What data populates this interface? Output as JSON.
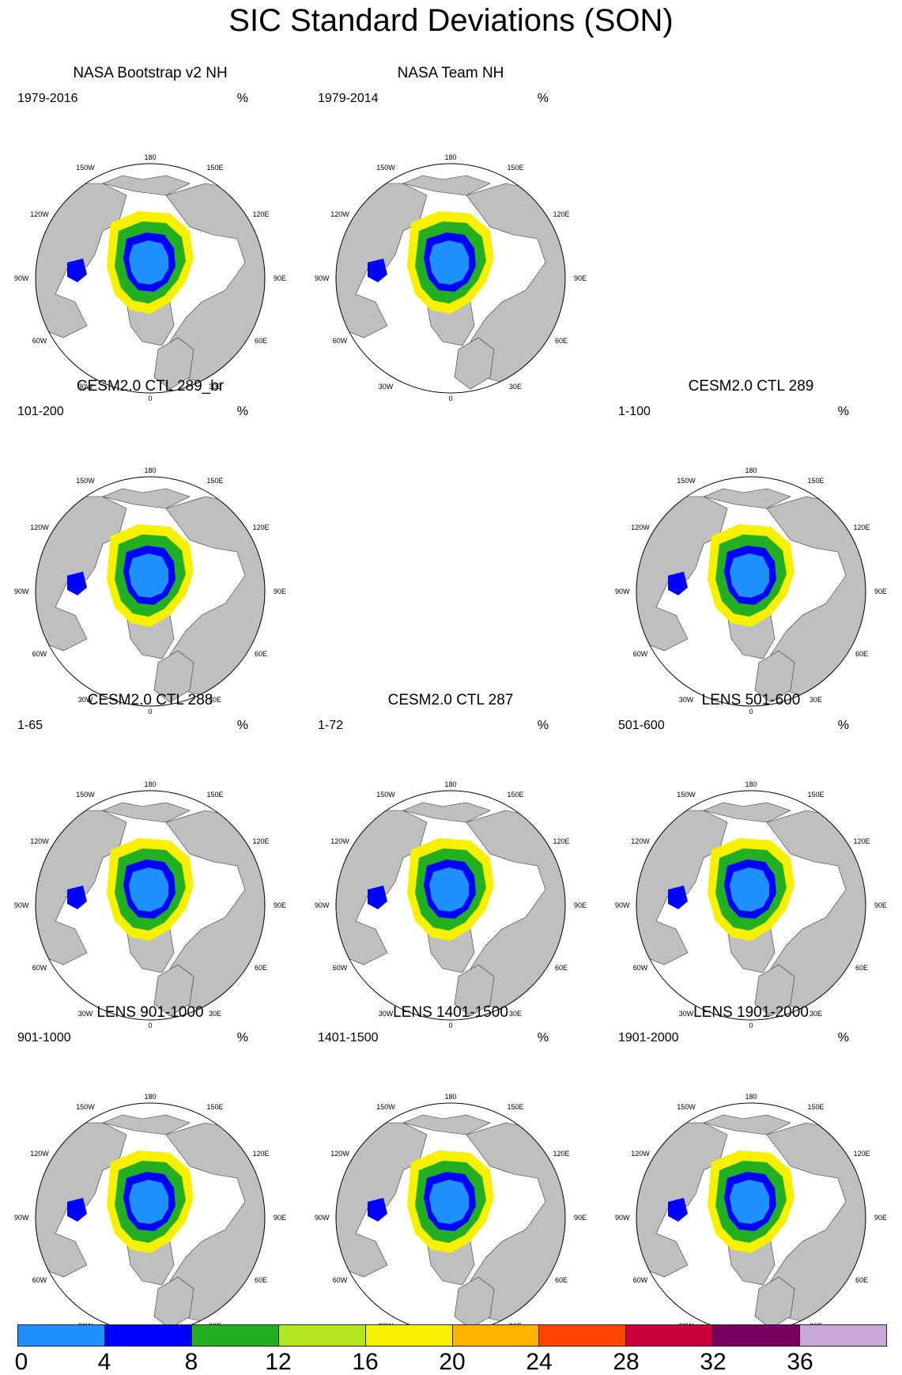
{
  "title": "SIC Standard Deviations (SON)",
  "colors": {
    "land": "#bfbfbf",
    "ocean": "#ffffff",
    "levels": [
      "#1e90ff",
      "#0000ff",
      "#22b022",
      "#b4e61e",
      "#f7f000",
      "#ffb300",
      "#ff4500",
      "#c8003c",
      "#7a0060",
      "#c8a8d8"
    ]
  },
  "map_labels": {
    "lon_top": "180",
    "lon_bottom": "0",
    "lon_left": "90W",
    "lon_right": "90E",
    "lon_150w": "150W",
    "lon_150e": "150E",
    "lon_120w": "120W",
    "lon_120e": "120E",
    "lon_60w": "60W",
    "lon_60e": "60E",
    "lon_30w": "30W",
    "lon_30e": "30E"
  },
  "panels": [
    {
      "title": "NASA Bootstrap v2 NH",
      "period": "1979-2016",
      "unit": "%"
    },
    {
      "title": "NASA Team NH",
      "period": "1979-2014",
      "unit": "%"
    },
    {
      "title": "CESM2.0 CTL 289_br",
      "period": "101-200",
      "unit": "%"
    },
    {
      "title": "CESM2.0 CTL 289",
      "period": "1-100",
      "unit": "%"
    },
    {
      "title": "CESM2.0 CTL 288",
      "period": "1-65",
      "unit": "%"
    },
    {
      "title": "CESM2.0 CTL 287",
      "period": "1-72",
      "unit": "%"
    },
    {
      "title": "LENS 501-600",
      "period": "501-600",
      "unit": "%"
    },
    {
      "title": "LENS 901-1000",
      "period": "901-1000",
      "unit": "%"
    },
    {
      "title": "LENS 1401-1500",
      "period": "1401-1500",
      "unit": "%"
    },
    {
      "title": "LENS 1901-2000",
      "period": "1901-2000",
      "unit": "%"
    }
  ],
  "colorbar": {
    "ticks": [
      "0",
      "4",
      "8",
      "12",
      "16",
      "20",
      "24",
      "28",
      "32",
      "36"
    ]
  }
}
